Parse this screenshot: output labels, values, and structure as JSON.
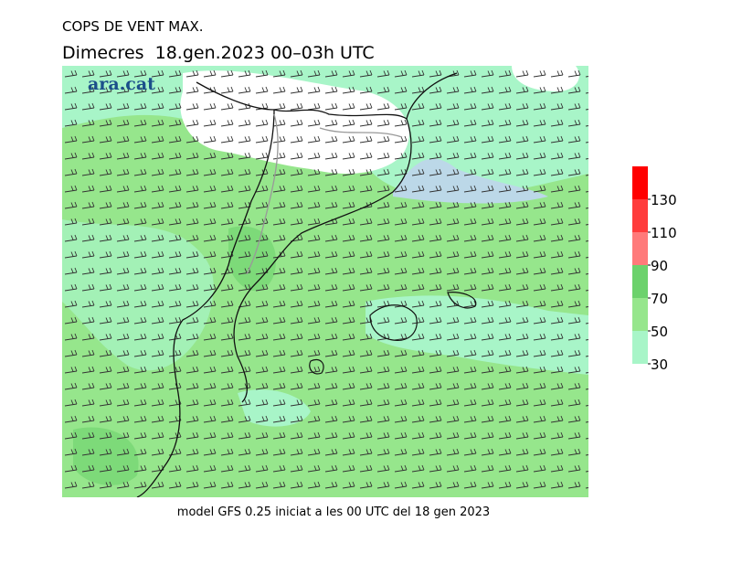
{
  "header": {
    "title": "COPS DE VENT MAX.",
    "subtitle": "Dimecres  18.gen.2023 00–03h UTC"
  },
  "logo": "ara.cat",
  "footer": "model GFS 0.25 iniciat a les 00 UTC del 18 gen 2023",
  "legend": {
    "ticks": [
      30,
      50,
      70,
      90,
      110,
      130
    ],
    "colors": [
      "#a8f5c8",
      "#96e68c",
      "#6cd26c",
      "#ff7a7a",
      "#ff3c3c",
      "#ff0000"
    ]
  }
}
